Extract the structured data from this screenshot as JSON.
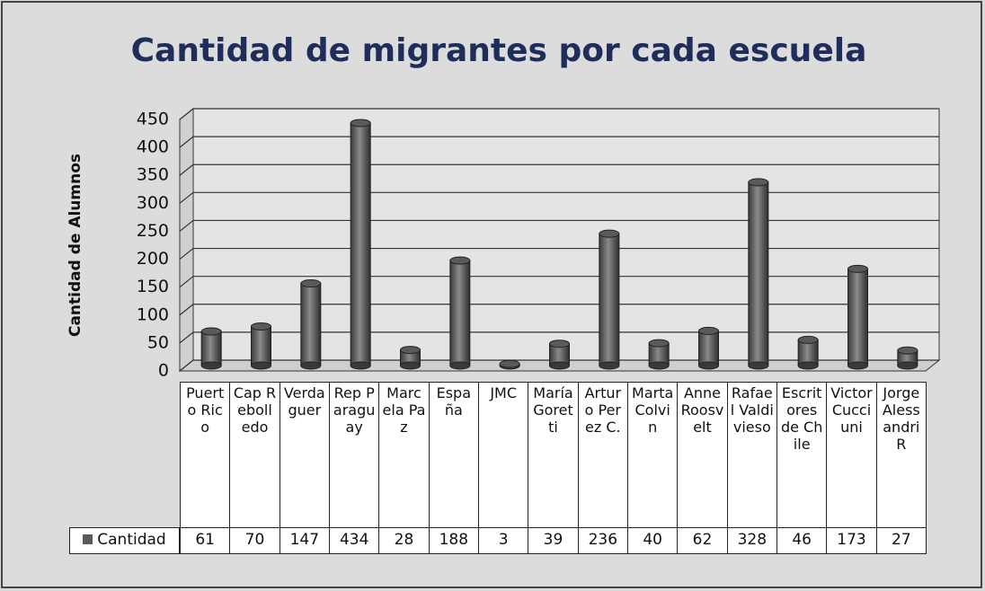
{
  "chart_data": {
    "type": "bar",
    "title": "Cantidad de migrantes por cada escuela",
    "y_label": "Cantidad de Alumnos",
    "categories": [
      "Puerto Rico",
      "Cap Rebolledo",
      "Verdaguer",
      "Rep Paraguay",
      "Marcela Paz",
      "España",
      "JMC",
      "María Goretti",
      "Arturo Perez C.",
      "Marta Colvin",
      "Anne Roosvelt",
      "Rafael Valdivieso",
      "Escritores de Chile",
      "Victor Cucciuni",
      "Jorge Alessandri R"
    ],
    "series": [
      {
        "name": "Cantidad",
        "color": "#5a5a5a",
        "values": [
          61,
          70,
          147,
          434,
          28,
          188,
          3,
          39,
          236,
          40,
          62,
          328,
          46,
          173,
          27
        ]
      }
    ],
    "ylim": [
      0,
      450
    ],
    "yticks": [
      0,
      50,
      100,
      150,
      200,
      250,
      300,
      350,
      400,
      450
    ],
    "grid": true
  }
}
